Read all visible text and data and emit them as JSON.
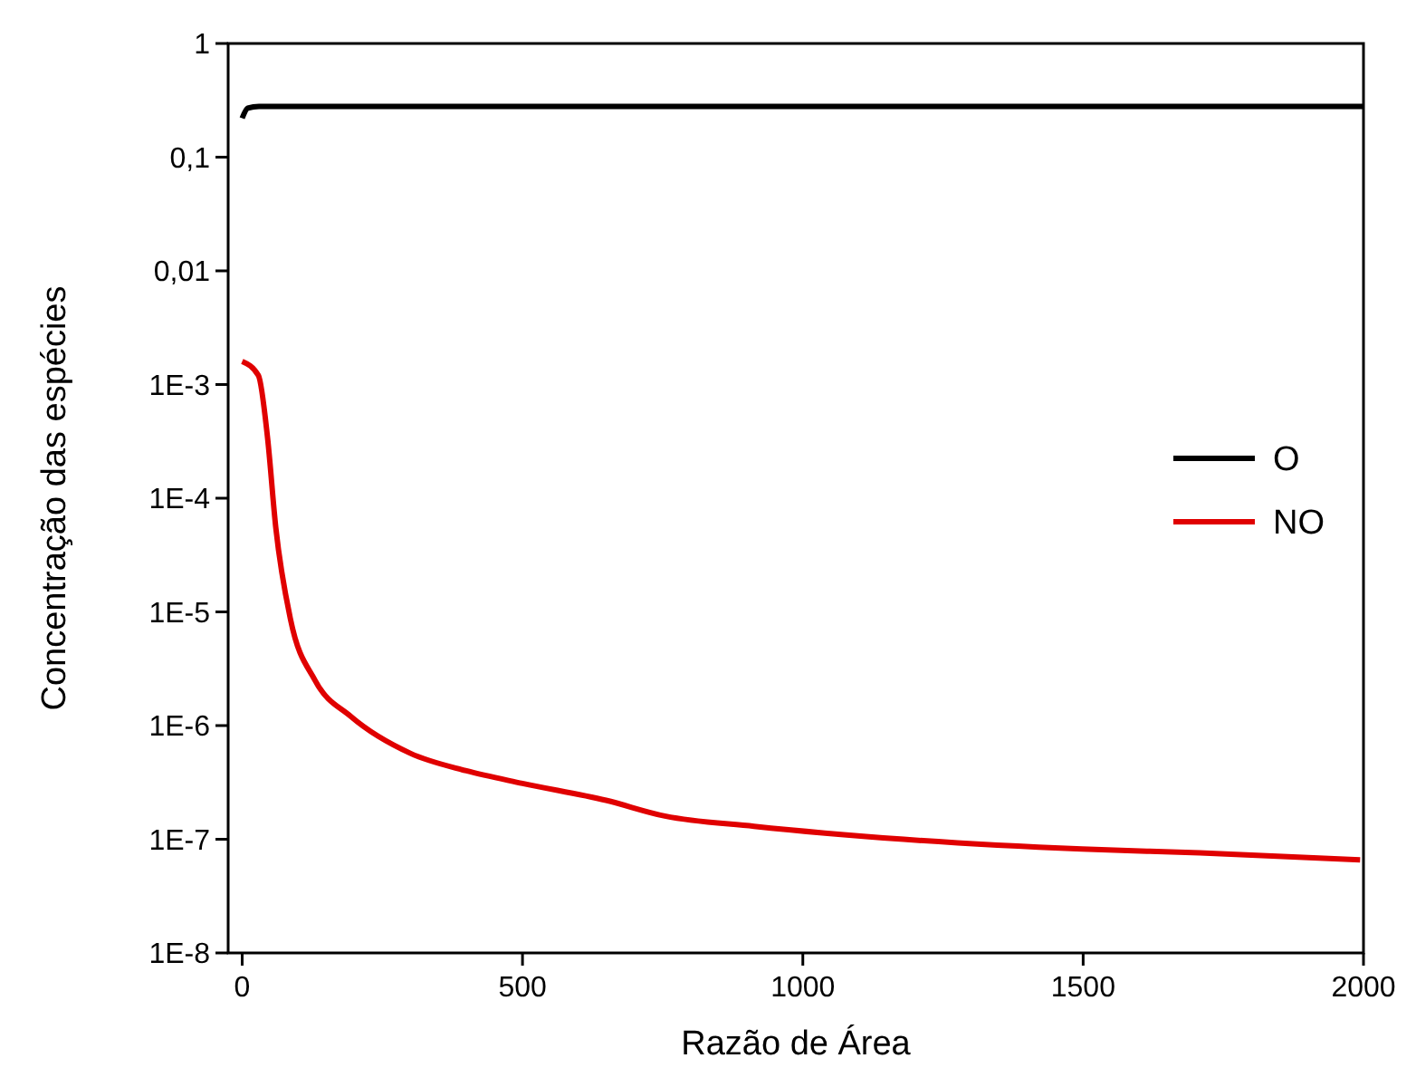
{
  "chart_data": {
    "type": "line",
    "xlabel": "Razão de Área",
    "ylabel": "Concentração das espécies",
    "log": "y",
    "xlim": [
      -25,
      2000
    ],
    "xticks": [
      0,
      500,
      1000,
      1500,
      2000
    ],
    "ylim": [
      1e-08,
      1
    ],
    "yticks": [
      {
        "value": 1e-08,
        "label": "1E-8"
      },
      {
        "value": 1e-07,
        "label": "1E-7"
      },
      {
        "value": 1e-06,
        "label": "1E-6"
      },
      {
        "value": 1e-05,
        "label": "1E-5"
      },
      {
        "value": 0.0001,
        "label": "1E-4"
      },
      {
        "value": 0.001,
        "label": "1E-3"
      },
      {
        "value": 0.01,
        "label": "0,01"
      },
      {
        "value": 0.1,
        "label": "0,1"
      },
      {
        "value": 1,
        "label": "1"
      }
    ],
    "grid": false,
    "legend": "right",
    "line_style": "solid",
    "series": [
      {
        "name": "O",
        "color": "#000000",
        "x": [
          0,
          10,
          30,
          100,
          500,
          1000,
          1500,
          2000
        ],
        "values": [
          0.22,
          0.27,
          0.28,
          0.28,
          0.28,
          0.28,
          0.28,
          0.28
        ]
      },
      {
        "name": "NO",
        "color": "#e00000",
        "x": [
          0,
          29,
          45,
          60,
          86,
          130,
          194,
          300,
          400,
          500,
          649,
          754,
          913,
          1180,
          1498,
          1708,
          1994
        ],
        "values": [
          0.0016,
          0.0012,
          0.00035,
          5.5e-05,
          8.7e-06,
          2.5e-06,
          1.2e-06,
          5.7e-07,
          4e-07,
          3.1e-07,
          2.2e-07,
          1.6e-07,
          1.3e-07,
          1e-07,
          8.2e-08,
          7.6e-08,
          6.6e-08
        ]
      }
    ]
  }
}
